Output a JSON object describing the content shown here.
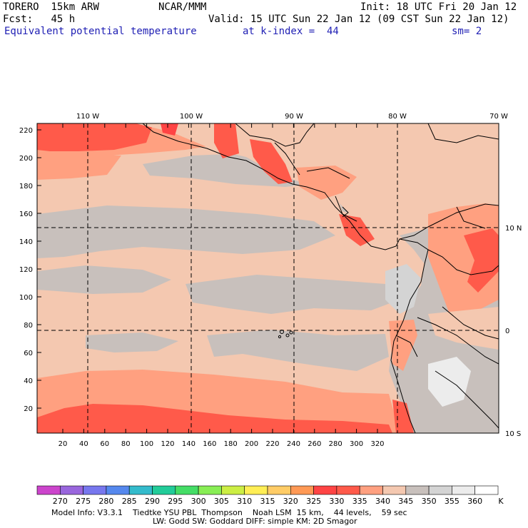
{
  "header": {
    "model": "TORERO",
    "resolution": "15km ARW",
    "center": "NCAR/MMM",
    "init": "Init: 18 UTC Fri 20 Jan 12",
    "fcst_label": "Fcst:",
    "fcst_value": "45 h",
    "valid": "Valid: 15 UTC Sun 22 Jan 12 (09 CST Sun 22 Jan 12)",
    "field": "Equivalent potential temperature",
    "level": "at k-index =  44",
    "smoothing": "sm= 2"
  },
  "map": {
    "lon_labels": [
      "110 W",
      "100 W",
      "90 W",
      "80 W",
      "70 W"
    ],
    "lat_labels": [
      "10 N",
      "0",
      "10 S"
    ],
    "x_ticks": [
      "20",
      "40",
      "60",
      "80",
      "100",
      "120",
      "140",
      "160",
      "180",
      "200",
      "220",
      "240",
      "260",
      "280",
      "300",
      "320"
    ],
    "y_ticks": [
      "220",
      "200",
      "180",
      "160",
      "140",
      "120",
      "100",
      "80",
      "60",
      "40",
      "20"
    ]
  },
  "colorbar": {
    "unit": "K",
    "labels": [
      "270",
      "275",
      "280",
      "285",
      "290",
      "295",
      "300",
      "305",
      "310",
      "315",
      "320",
      "325",
      "330",
      "335",
      "340",
      "345",
      "350",
      "355",
      "360"
    ],
    "colors": [
      "#cc44cc",
      "#9966dd",
      "#7777ee",
      "#5588ee",
      "#33bbcc",
      "#22cc99",
      "#44dd66",
      "#88ee55",
      "#ccee44",
      "#ffee55",
      "#ffcc66",
      "#ff9955",
      "#ff4444",
      "#ff5a4a",
      "#ffa080",
      "#f4c8b0",
      "#c8c0bc",
      "#d4d4d4",
      "#ececec",
      "#ffffff"
    ]
  },
  "footer": {
    "line1": "Model Info: V3.3.1    Tiedtke YSU PBL  Thompson    Noah LSM  15 km,    44 levels,    59 sec",
    "line2": "LW: Godd SW: Goddard DIFF: simple KM: 2D Smagor"
  }
}
